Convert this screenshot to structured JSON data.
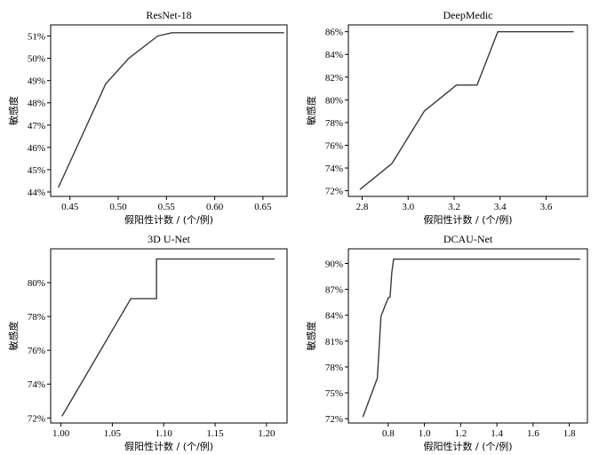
{
  "figure": {
    "xlabel": "假阳性计数 / (个/例)",
    "ylabel": "敏感度"
  },
  "chart_data": [
    {
      "type": "line",
      "title": "ResNet-18",
      "xlabel": "假阳性计数 / (个/例)",
      "ylabel": "敏感度",
      "xlim": [
        0.43,
        0.675
      ],
      "ylim": [
        43.8,
        51.5
      ],
      "xticks": [
        0.45,
        0.5,
        0.55,
        0.6,
        0.65
      ],
      "xtick_labels": [
        "0.45",
        "0.50",
        "0.55",
        "0.60",
        "0.65"
      ],
      "yticks": [
        44,
        45,
        46,
        47,
        48,
        49,
        50,
        51
      ],
      "ytick_labels": [
        "44%",
        "45%",
        "46%",
        "47%",
        "48%",
        "49%",
        "50%",
        "51%"
      ],
      "grid": false,
      "series": [
        {
          "x": [
            0.438,
            0.487,
            0.511,
            0.541,
            0.556,
            0.672
          ],
          "y": [
            44.2,
            48.85,
            50.0,
            51.0,
            51.15,
            51.15
          ]
        }
      ]
    },
    {
      "type": "line",
      "title": "DeepMedic",
      "xlabel": "假阳性计数 / (个/例)",
      "ylabel": "敏感度",
      "xlim": [
        2.74,
        3.78
      ],
      "ylim": [
        71.5,
        86.6
      ],
      "xticks": [
        2.8,
        3.0,
        3.2,
        3.4,
        3.6
      ],
      "xtick_labels": [
        "2.8",
        "3.0",
        "3.2",
        "3.4",
        "3.6"
      ],
      "yticks": [
        72,
        74,
        76,
        78,
        80,
        82,
        84,
        86
      ],
      "ytick_labels": [
        "72%",
        "74%",
        "76%",
        "78%",
        "80%",
        "82%",
        "84%",
        "86%"
      ],
      "grid": false,
      "series": [
        {
          "x": [
            2.79,
            2.93,
            3.07,
            3.21,
            3.3,
            3.39,
            3.72
          ],
          "y": [
            72.1,
            74.4,
            79.0,
            81.3,
            81.3,
            86.0,
            86.0
          ]
        }
      ]
    },
    {
      "type": "line",
      "title": "3D U-Net",
      "xlabel": "假阳性计数 / (个/例)",
      "ylabel": "敏感度",
      "xlim": [
        0.99,
        1.22
      ],
      "ylim": [
        71.7,
        82.0
      ],
      "xticks": [
        1.0,
        1.05,
        1.1,
        1.15,
        1.2
      ],
      "xtick_labels": [
        "1.00",
        "1.05",
        "1.10",
        "1.15",
        "1.20"
      ],
      "yticks": [
        72,
        74,
        76,
        78,
        80
      ],
      "ytick_labels": [
        "72%",
        "74%",
        "76%",
        "78%",
        "80%"
      ],
      "grid": false,
      "series": [
        {
          "x": [
            1.001,
            1.068,
            1.093,
            1.093,
            1.208
          ],
          "y": [
            72.1,
            79.05,
            79.05,
            81.4,
            81.4
          ]
        }
      ]
    },
    {
      "type": "line",
      "title": "DCAU-Net",
      "xlabel": "假阳性计数 / (个/例)",
      "ylabel": "敏感度",
      "xlim": [
        0.58,
        1.9
      ],
      "ylim": [
        71.5,
        91.7
      ],
      "xticks": [
        0.8,
        1.0,
        1.2,
        1.4,
        1.6,
        1.8
      ],
      "xtick_labels": [
        "0.8",
        "1.0",
        "1.2",
        "1.4",
        "1.6",
        "1.8"
      ],
      "yticks": [
        72,
        75,
        78,
        81,
        84,
        87,
        90
      ],
      "ytick_labels": [
        "72%",
        "75%",
        "78%",
        "81%",
        "84%",
        "87%",
        "90%"
      ],
      "grid": false,
      "series": [
        {
          "x": [
            0.66,
            0.74,
            0.76,
            0.8,
            0.81,
            0.82,
            0.83,
            1.86
          ],
          "y": [
            72.2,
            76.7,
            83.9,
            86.0,
            86.1,
            89.0,
            90.5,
            90.5
          ]
        }
      ]
    }
  ]
}
